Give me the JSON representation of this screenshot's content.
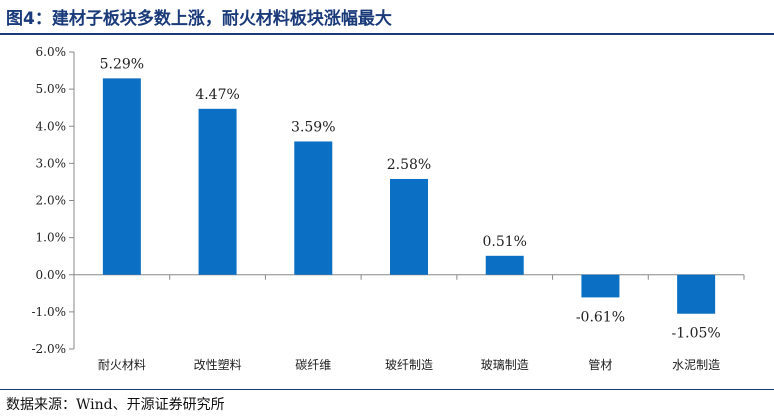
{
  "header": {
    "title": "图4：建材子板块多数上涨，耐火材料板块涨幅最大"
  },
  "footer": {
    "source": "数据来源：Wind、开源证券研究所"
  },
  "colors": {
    "bar": "#0b6fc4",
    "title": "#1a3a7a"
  },
  "chart_data": {
    "type": "bar",
    "title": "建材子板块多数上涨，耐火材料板块涨幅最大",
    "categories": [
      "耐火材料",
      "改性塑料",
      "碳纤维",
      "玻纤制造",
      "玻璃制造",
      "管材",
      "水泥制造"
    ],
    "values": [
      5.29,
      4.47,
      3.59,
      2.58,
      0.51,
      -0.61,
      -1.05
    ],
    "data_labels": [
      "5.29%",
      "4.47%",
      "3.59%",
      "2.58%",
      "0.51%",
      "-0.61%",
      "-1.05%"
    ],
    "yticks": [
      6.0,
      5.0,
      4.0,
      3.0,
      2.0,
      1.0,
      0.0,
      -1.0,
      -2.0
    ],
    "ytick_labels": [
      "6.0%",
      "5.0%",
      "4.0%",
      "3.0%",
      "2.0%",
      "1.0%",
      "0.0%",
      "-1.0%",
      "-2.0%"
    ],
    "ylim": [
      -2.0,
      6.0
    ],
    "xlabel": "",
    "ylabel": "",
    "grid": false
  }
}
